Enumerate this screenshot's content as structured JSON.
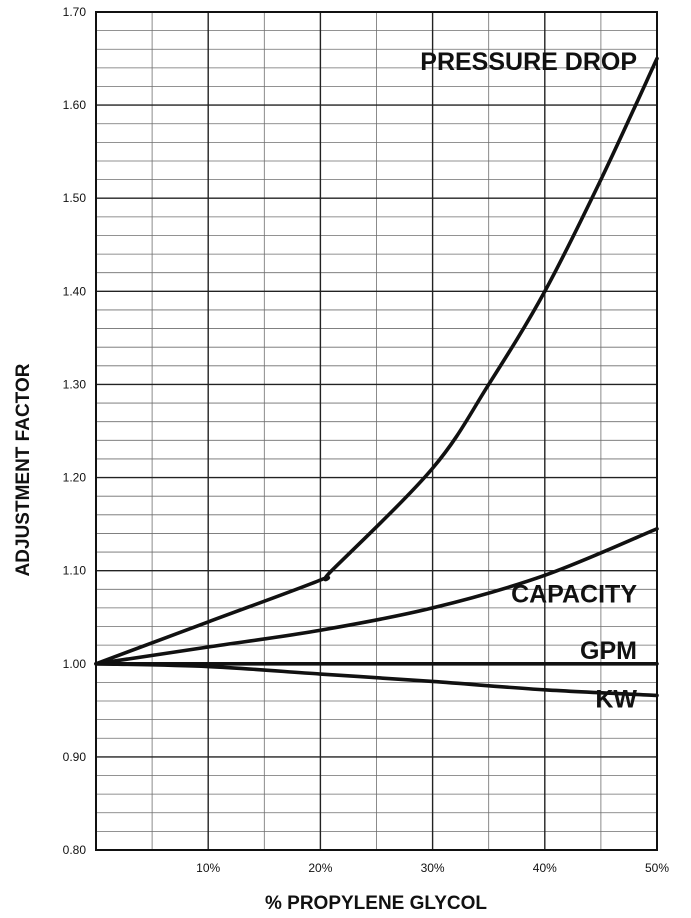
{
  "chart_data": {
    "type": "line",
    "xlabel": "% PROPYLENE GLYCOL",
    "ylabel": "ADJUSTMENT FACTOR",
    "xlim": [
      0,
      50
    ],
    "ylim": [
      0.8,
      1.7
    ],
    "x_ticks": [
      {
        "value": 10,
        "label": "10%"
      },
      {
        "value": 20,
        "label": "20%"
      },
      {
        "value": 30,
        "label": "30%"
      },
      {
        "value": 40,
        "label": "40%"
      },
      {
        "value": 50,
        "label": "50%"
      }
    ],
    "y_ticks": [
      {
        "value": 0.8,
        "label": "0.80"
      },
      {
        "value": 0.9,
        "label": "0.90"
      },
      {
        "value": 1.0,
        "label": "1.00"
      },
      {
        "value": 1.1,
        "label": "1.10"
      },
      {
        "value": 1.2,
        "label": "1.20"
      },
      {
        "value": 1.3,
        "label": "1.30"
      },
      {
        "value": 1.4,
        "label": "1.40"
      },
      {
        "value": 1.5,
        "label": "1.50"
      },
      {
        "value": 1.6,
        "label": "1.60"
      },
      {
        "value": 1.7,
        "label": "1.70"
      }
    ],
    "grid": {
      "x_minor_step": 5,
      "y_minor_step": 0.02
    },
    "series": [
      {
        "name": "PRESSURE DROP",
        "x": [
          0,
          10,
          20,
          21,
          30,
          35,
          40,
          45,
          50
        ],
        "y": [
          1.0,
          1.045,
          1.09,
          1.1,
          1.21,
          1.3,
          1.4,
          1.52,
          1.65
        ]
      },
      {
        "name": "GPM",
        "x": [
          0,
          10,
          20,
          30,
          40,
          50
        ],
        "y": [
          1.0,
          1.018,
          1.036,
          1.06,
          1.095,
          1.145
        ]
      },
      {
        "name": "KW",
        "x": [
          0,
          50
        ],
        "y": [
          1.0,
          1.0
        ]
      },
      {
        "name": "CAPACITY",
        "x": [
          0,
          10,
          20,
          30,
          40,
          50
        ],
        "y": [
          1.0,
          0.997,
          0.989,
          0.981,
          0.972,
          0.966
        ]
      }
    ]
  }
}
